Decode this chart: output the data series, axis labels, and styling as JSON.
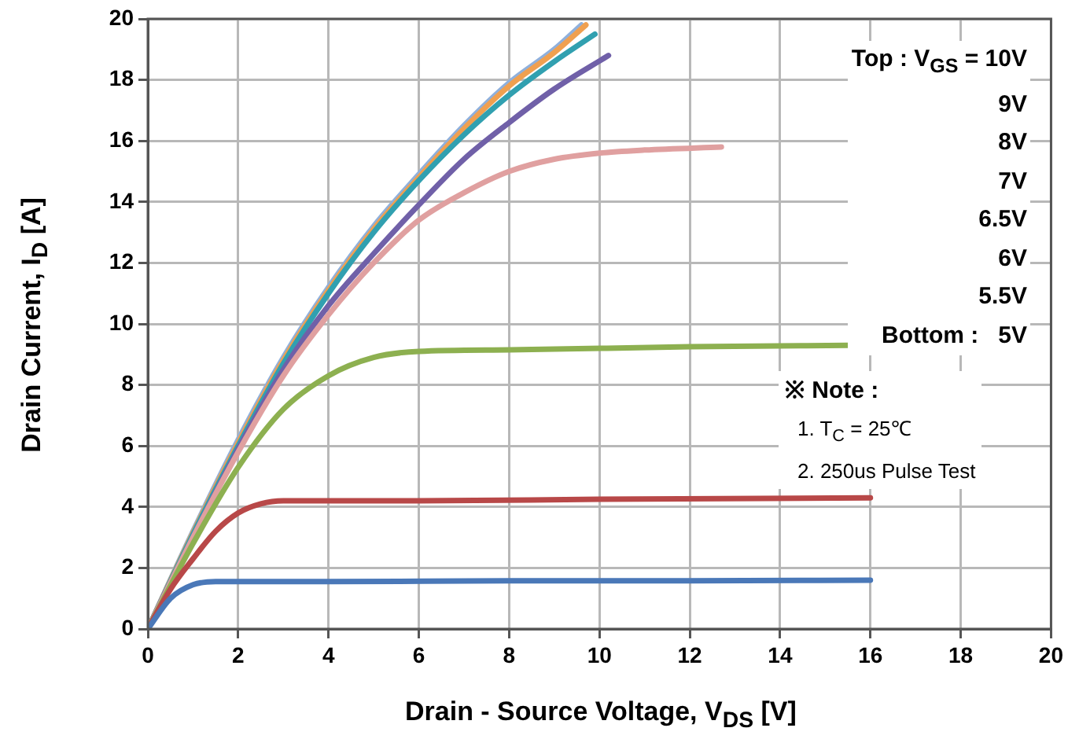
{
  "chart_data": {
    "type": "line",
    "xlabel": "Drain - Source Voltage, V$_{DS}$ [V]",
    "ylabel": "Drain Current, I$_{D}$ [A]",
    "xlim": [
      0,
      20
    ],
    "xticks": [
      0,
      2,
      4,
      6,
      8,
      10,
      12,
      14,
      16,
      18,
      20
    ],
    "ylim": [
      0,
      20
    ],
    "yticks": [
      0,
      2,
      4,
      6,
      8,
      10,
      12,
      14,
      16,
      18,
      20
    ],
    "grid": true,
    "legend": false,
    "marker": "none",
    "line_style": "solid",
    "annotations": [
      "Top : V$_{GS}$ = 10V",
      "9V",
      "8V",
      "7V",
      "6.5V",
      "6V",
      "5.5V",
      "Bottom :   5V",
      "※ Note :",
      "1. T$_{C}$ = 25℃",
      "2. 250us Pulse Test"
    ],
    "series": [
      {
        "color": "#4a78b8",
        "x": [
          0,
          0.5,
          1,
          1.5,
          4,
          8,
          12,
          16
        ],
        "values": [
          0,
          1.0,
          1.45,
          1.55,
          1.55,
          1.58,
          1.58,
          1.6
        ]
      },
      {
        "color": "#b84848",
        "x": [
          0,
          0.5,
          1,
          1.5,
          2,
          2.5,
          3,
          6,
          10,
          16
        ],
        "values": [
          0,
          1.3,
          2.3,
          3.2,
          3.8,
          4.1,
          4.2,
          4.2,
          4.25,
          4.3
        ]
      },
      {
        "color": "#8db050",
        "x": [
          0,
          1,
          2,
          3,
          4,
          5,
          6,
          8,
          12,
          15.5
        ],
        "values": [
          0,
          2.8,
          5.3,
          7.2,
          8.3,
          8.9,
          9.1,
          9.15,
          9.25,
          9.3
        ]
      },
      {
        "color": "#e0a0a0",
        "x": [
          0,
          1,
          2,
          3,
          4,
          5,
          6,
          7,
          8,
          9,
          10,
          11,
          12.7
        ],
        "values": [
          0,
          3,
          5.8,
          8.3,
          10.3,
          12,
          13.4,
          14.3,
          15,
          15.4,
          15.6,
          15.7,
          15.8
        ]
      },
      {
        "color": "#7060a8",
        "x": [
          0,
          1,
          2,
          3,
          4,
          5,
          6,
          7,
          8,
          9,
          10.2
        ],
        "values": [
          0,
          3,
          5.9,
          8.5,
          10.6,
          12.3,
          13.9,
          15.4,
          16.6,
          17.7,
          18.8
        ]
      },
      {
        "color": "#31a0b0",
        "x": [
          0,
          1,
          2,
          3,
          4,
          5,
          6,
          7,
          8,
          9,
          9.9
        ],
        "values": [
          0,
          3.1,
          6,
          8.7,
          11,
          13,
          14.7,
          16.2,
          17.5,
          18.6,
          19.5
        ]
      },
      {
        "color": "#f0a050",
        "x": [
          0,
          1,
          2,
          3,
          4,
          5,
          6,
          7,
          8,
          9,
          9.7
        ],
        "values": [
          0,
          3.15,
          6.1,
          8.8,
          11.1,
          13.1,
          14.8,
          16.4,
          17.8,
          18.9,
          19.8
        ]
      },
      {
        "color": "#8fb0dc",
        "x": [
          0,
          1,
          2,
          3,
          4,
          5,
          6,
          7,
          8,
          9,
          9.6
        ],
        "values": [
          0,
          3.2,
          6.2,
          8.9,
          11.2,
          13.2,
          14.9,
          16.5,
          17.9,
          19.0,
          19.8
        ]
      }
    ]
  }
}
